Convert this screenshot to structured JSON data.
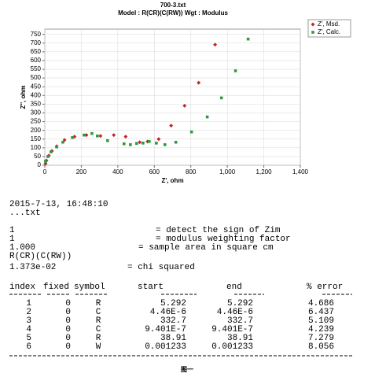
{
  "chart_data": {
    "type": "scatter",
    "title": "700-3.txt",
    "subtitle": "Model : R(CR)(C(RW))   Wgt : Modulus",
    "xlabel": "Z', ohm",
    "ylabel": "Z'', ohm",
    "xlim": [
      0,
      1400
    ],
    "ylim": [
      0,
      780
    ],
    "xticks": [
      0,
      200,
      400,
      600,
      800,
      {
        "value": 1000,
        "label": "1,000"
      },
      {
        "value": 1200,
        "label": "1,200"
      },
      {
        "value": 1400,
        "label": "1,400"
      }
    ],
    "yticks": [
      0,
      50,
      100,
      150,
      200,
      250,
      300,
      350,
      400,
      450,
      500,
      550,
      600,
      650,
      700,
      750
    ],
    "grid": true,
    "legend": "upper right",
    "series": [
      {
        "name": "Z', Msd.",
        "color": "#c0282d",
        "marker": "diamond",
        "x": [
          4,
          9,
          22,
          39,
          65,
          108,
          163,
          228,
          305,
          378,
          443,
          520,
          563,
          624,
          692,
          766,
          843,
          933
        ],
        "values": [
          9,
          27,
          55,
          82,
          109,
          145,
          164,
          173,
          168,
          173,
          164,
          132,
          136,
          150,
          227,
          341,
          473,
          691
        ]
      },
      {
        "name": "Z', Calc.",
        "color": "#2e9a3e",
        "marker": "square",
        "x": [
          4,
          17,
          34,
          65,
          99,
          151,
          215,
          258,
          288,
          344,
          434,
          469,
          503,
          538,
          572,
          611,
          658,
          718,
          804,
          890,
          968,
          1045,
          1114
        ],
        "values": [
          23,
          50,
          77,
          105,
          132,
          159,
          173,
          182,
          168,
          141,
          123,
          118,
          125,
          127,
          136,
          127,
          118,
          132,
          191,
          277,
          386,
          541,
          723
        ]
      }
    ]
  },
  "document": {
    "timestamp": "2015-7-13, 16:48:10",
    "file": "...txt",
    "params": [
      {
        "value": "1",
        "description": "= detect the sign of Zim"
      },
      {
        "value": "1",
        "description": "= modulus weighting factor"
      },
      {
        "value": "1.000",
        "description": "= sample area in square cm"
      }
    ],
    "model": "R(CR)(C(RW))",
    "chi": {
      "value": "1.373e-02",
      "description": "= chi squared"
    },
    "table": {
      "columns": [
        "index",
        "fixed",
        "symbol",
        "start",
        "end",
        "% error"
      ],
      "rows": [
        [
          "1",
          "0",
          "R",
          "5.292",
          "5.292",
          "4.686"
        ],
        [
          "2",
          "0",
          "C",
          "4.46E-6",
          "4.46E-6",
          "6.437"
        ],
        [
          "3",
          "0",
          "R",
          "332.7",
          "332.7",
          "5.109"
        ],
        [
          "4",
          "0",
          "C",
          "9.401E-7",
          "9.401E-7",
          "4.239"
        ],
        [
          "5",
          "0",
          "R",
          "38.91",
          "38.91",
          "7.279"
        ],
        [
          "6",
          "0",
          "W",
          "0.001233",
          "0.001233",
          "8.056"
        ]
      ]
    },
    "caption": "图一"
  }
}
